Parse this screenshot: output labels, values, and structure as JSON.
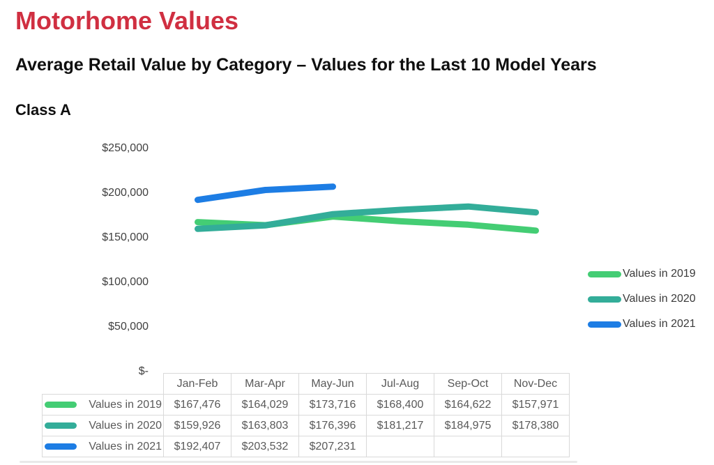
{
  "page": {
    "title": "Motorhome Values",
    "subtitle": "Average Retail Value by Category – Values for the Last 10 Model Years",
    "section_label": "Class A"
  },
  "colors": {
    "title_red": "#d02f41",
    "series_2019": "#44cd74",
    "series_2020": "#33ad99",
    "series_2021": "#1d7de4",
    "axis_text": "#404040",
    "table_text": "#595959",
    "table_border": "#d9d9d9"
  },
  "chart_data": {
    "type": "line",
    "title": "",
    "xlabel": "",
    "ylabel": "",
    "grid": false,
    "legend_position": "right",
    "categories": [
      "Jan-Feb",
      "Mar-Apr",
      "May-Jun",
      "Jul-Aug",
      "Sep-Oct",
      "Nov-Dec"
    ],
    "series": [
      {
        "name": "Values in 2019",
        "color_key": "series_2019",
        "values": [
          167476,
          164029,
          173716,
          168400,
          164622,
          157971
        ]
      },
      {
        "name": "Values in 2020",
        "color_key": "series_2020",
        "values": [
          159926,
          163803,
          176396,
          181217,
          184975,
          178380
        ]
      },
      {
        "name": "Values in 2021",
        "color_key": "series_2021",
        "values": [
          192407,
          203532,
          207231,
          null,
          null,
          null
        ]
      }
    ],
    "y_axis": {
      "min": 0,
      "max": 250000,
      "tick_step": 50000,
      "tick_labels": [
        "$-",
        "$50,000",
        "$100,000",
        "$150,000",
        "$200,000",
        "$250,000"
      ]
    }
  },
  "table": {
    "column_headers": [
      "Jan-Feb",
      "Mar-Apr",
      "May-Jun",
      "Jul-Aug",
      "Sep-Oct",
      "Nov-Dec"
    ],
    "rows": [
      {
        "label": "Values in 2019",
        "color_key": "series_2019",
        "values": [
          "$167,476",
          "$164,029",
          "$173,716",
          "$168,400",
          "$164,622",
          "$157,971"
        ]
      },
      {
        "label": "Values in 2020",
        "color_key": "series_2020",
        "values": [
          "$159,926",
          "$163,803",
          "$176,396",
          "$181,217",
          "$184,975",
          "$178,380"
        ]
      },
      {
        "label": "Values in 2021",
        "color_key": "series_2021",
        "values": [
          "$192,407",
          "$203,532",
          "$207,231",
          "",
          "",
          ""
        ]
      }
    ]
  }
}
